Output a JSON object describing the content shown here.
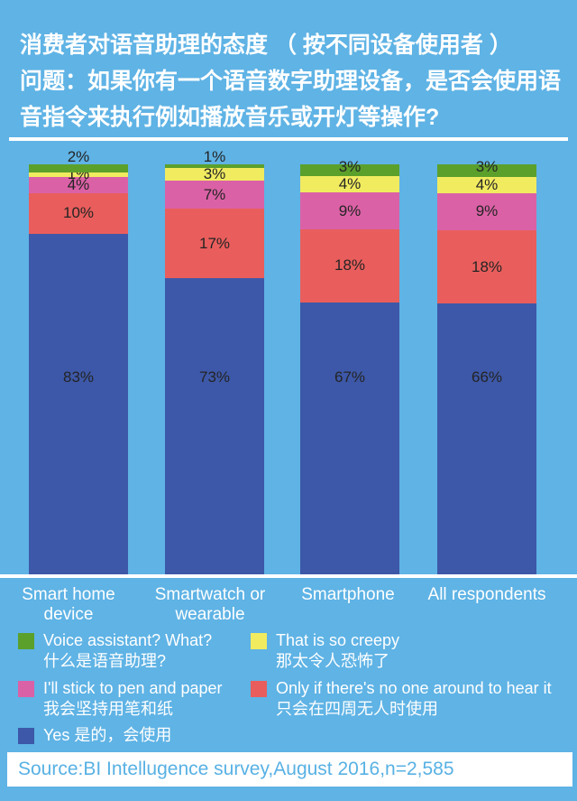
{
  "header": {
    "title": "消费者对语音助理的态度 （ 按不同设备使用者 ）",
    "question": "问题：如果你有一个语音数字助理设备，是否会使用语音指令来执行例如播放音乐或开灯等操作?"
  },
  "colors": {
    "background": "#5FB3E5",
    "yes": "#3D58A8",
    "only_if": "#E95E5C",
    "pen_paper": "#DB61A6",
    "creepy": "#F1EB60",
    "what": "#5BA02B",
    "bar_label": "#242424",
    "text_white": "#FFFFFF",
    "source_text": "#58B1E4"
  },
  "chart_data": {
    "type": "bar",
    "stacked": true,
    "orientation": "vertical",
    "unit": "%",
    "ylim": [
      0,
      100
    ],
    "grid": false,
    "legend_position": "bottom",
    "categories": [
      {
        "label": "Smart home device",
        "lines": [
          "Smart home",
          "device"
        ]
      },
      {
        "label": "Smartwatch or wearable",
        "lines": [
          "Smartwatch or",
          "wearable"
        ]
      },
      {
        "label": "Smartphone",
        "lines": [
          "Smartphone"
        ]
      },
      {
        "label": "All respondents",
        "lines": [
          "All respondents"
        ]
      }
    ],
    "series": [
      {
        "name": "Yes 是的，会使用",
        "color_key": "yes",
        "values": [
          83,
          73,
          67,
          66
        ]
      },
      {
        "name": "Only if there's no one around to hear it 只会在四周无人时使用",
        "color_key": "only_if",
        "values": [
          10,
          17,
          18,
          18
        ]
      },
      {
        "name": "I'll stick to pen and paper 我会坚持用笔和纸",
        "color_key": "pen_paper",
        "values": [
          4,
          7,
          9,
          9
        ]
      },
      {
        "name": "That is so creepy 那太令人恐怖了",
        "color_key": "creepy",
        "values": [
          1,
          3,
          4,
          4
        ]
      },
      {
        "name": "Voice assistant? What? 什么是语音助理?",
        "color_key": "what",
        "values": [
          2,
          1,
          3,
          3
        ]
      }
    ]
  },
  "legend": {
    "items": [
      {
        "en": "Voice assistant? What?",
        "zh": "什么是语音助理?",
        "color_key": "what"
      },
      {
        "en": "That is so creepy",
        "zh": "那太令人恐怖了",
        "color_key": "creepy"
      },
      {
        "en": "I'll stick to pen and paper",
        "zh": "我会坚持用笔和纸",
        "color_key": "pen_paper"
      },
      {
        "en": "Only if there's no one around to hear it",
        "zh": "只会在四周无人时使用",
        "color_key": "only_if"
      },
      {
        "en": "Yes 是的，会使用",
        "zh": "",
        "color_key": "yes"
      }
    ]
  },
  "footer": {
    "text": "Source:BI Intellugence survey,August 2016,n=2,585"
  }
}
